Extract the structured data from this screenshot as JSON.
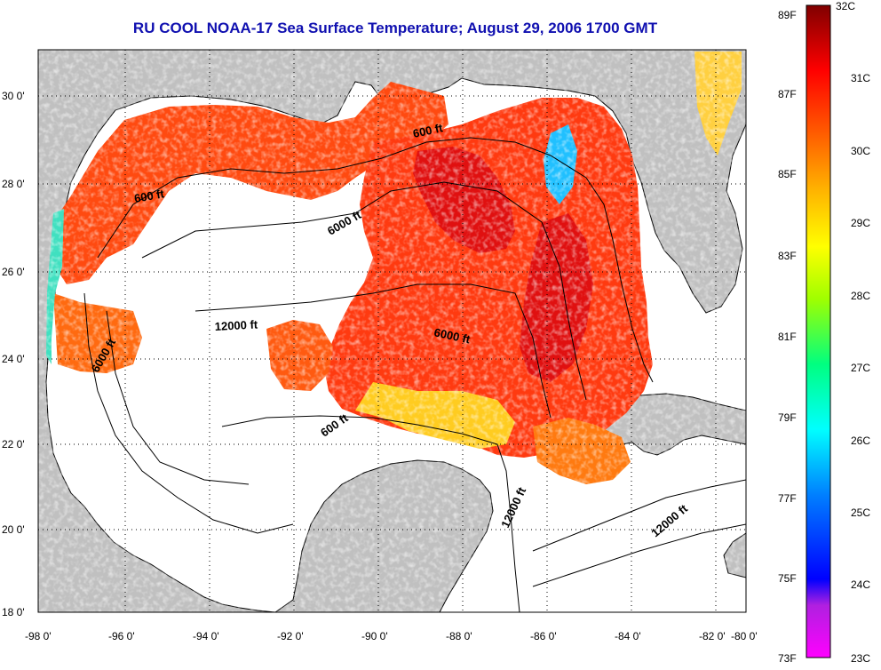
{
  "title": "RU COOL  NOAA-17  Sea Surface Temperature;  August 29, 2006 1700 GMT",
  "axes": {
    "x_ticks": [
      "-98 0'",
      "-96 0'",
      "-94 0'",
      "-92 0'",
      "-90 0'",
      "-88 0'",
      "-86 0'",
      "-84 0'",
      "-82 0'",
      "-80 0'"
    ],
    "y_ticks": [
      "30 0'",
      "28 0'",
      "26 0'",
      "24 0'",
      "22 0'",
      "20 0'",
      "18 0'"
    ]
  },
  "contour_labels": {
    "c600_west": "600 ft",
    "c600_ne": "600 ft",
    "c600_south": "600 ft",
    "c6000_central": "6000 ft",
    "c6000_east": "6000 ft",
    "c6000_west": "6000 ft",
    "c12000_central": "12000 ft",
    "c12000_yucatan": "12000 ft",
    "c12000_cuba": "12000 ft"
  },
  "colorbar": {
    "fahrenheit": [
      "89F",
      "87F",
      "85F",
      "83F",
      "81F",
      "79F",
      "77F",
      "75F",
      "73F"
    ],
    "celsius": [
      "32C",
      "31C",
      "30C",
      "29C",
      "28C",
      "27C",
      "26C",
      "25C",
      "24C",
      "23C"
    ],
    "colors": [
      "#ff00ff",
      "#a020f0",
      "#0000ff",
      "#0080ff",
      "#00ffff",
      "#00ff80",
      "#80ff00",
      "#ffff00",
      "#ffc000",
      "#ff8000",
      "#ff3000",
      "#e00000",
      "#800000"
    ]
  },
  "colors": {
    "land": "#c0c0c0",
    "title": "#1010b0",
    "sst_warm": "#ff4a10",
    "sst_hot": "#e01010",
    "sst_cool": "#ffcc20"
  }
}
